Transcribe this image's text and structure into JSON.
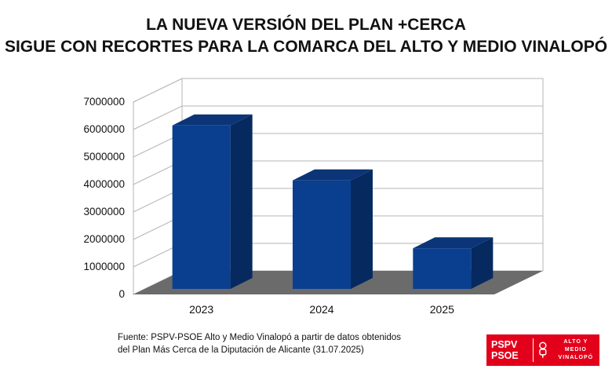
{
  "title_lines": [
    "LA NUEVA VERSIÓN DEL PLAN +CERCA",
    "SIGUE CON RECORTES PARA LA COMARCA DEL ALTO Y MEDIO VINALOPÓ"
  ],
  "source_lines": [
    "Fuente: PSPV-PSOE Alto y Medio Vinalopó a partir de datos obtenidos",
    "del Plan Más Cerca de la Diputación de Alicante (31.07.2025)"
  ],
  "logo": {
    "left_line1": "PSPV",
    "left_line2": "PSOE",
    "right_line1": "ALTO Y MEDIO",
    "right_line2": "VINALOPÓ",
    "icon": "rose-in-fist-icon",
    "color": "#e3001b"
  },
  "chart_data": {
    "type": "bar",
    "style": "3d",
    "categories": [
      "2023",
      "2024",
      "2025"
    ],
    "values": [
      5950000,
      3950000,
      1480000
    ],
    "title": "",
    "xlabel": "",
    "ylabel": "",
    "ylim": [
      0,
      7000000
    ],
    "yticks": [
      0,
      1000000,
      2000000,
      3000000,
      4000000,
      5000000,
      6000000,
      7000000
    ],
    "ytick_labels": [
      "0",
      "1000000",
      "2000000",
      "3000000",
      "4000000",
      "5000000",
      "6000000",
      "7000000"
    ],
    "grid": true,
    "legend": "none",
    "bar_color": "#0a3f8f",
    "bar_side_color": "#062a5f",
    "bar_top_color": "#0b3576",
    "floor_color": "#6b6b6b"
  }
}
